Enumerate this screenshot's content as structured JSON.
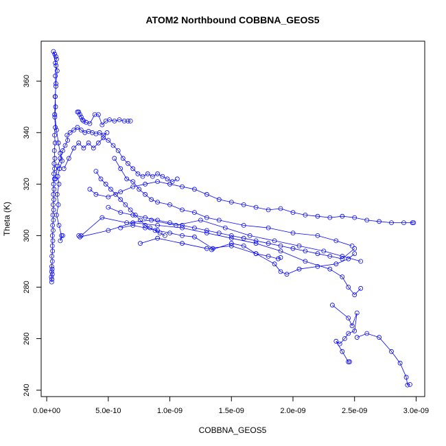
{
  "chart_data": {
    "type": "scatter",
    "title": "ATOM2 Northbound COBBNA_GEOS5",
    "xlabel": "COBBNA_GEOS5",
    "ylabel": "Theta (K)",
    "xlim": [
      -4.5e-11,
      3.07e-09
    ],
    "ylim": [
      237.5,
      375.5
    ],
    "x_ticks": [
      0,
      5e-10,
      1e-09,
      1.5e-09,
      2e-09,
      2.5e-09,
      3e-09
    ],
    "x_tick_labels": [
      "0.0e+00",
      "5.0e-10",
      "1.0e-09",
      "1.5e-09",
      "2.0e-09",
      "2.5e-09",
      "3.0e-09"
    ],
    "y_ticks": [
      240,
      260,
      280,
      300,
      320,
      340,
      360
    ],
    "y_tick_labels": [
      "240",
      "260",
      "280",
      "300",
      "320",
      "340",
      "360"
    ],
    "grid": false,
    "marker": "open-circle",
    "connected": true,
    "color": "#0000ff",
    "series": [
      {
        "points": [
          [
            4e-11,
            282
          ],
          [
            4.2e-11,
            283
          ],
          [
            3.8e-11,
            284
          ],
          [
            4.5e-11,
            285
          ],
          [
            4e-11,
            286
          ],
          [
            4.4e-11,
            287
          ],
          [
            4.1e-11,
            288
          ],
          [
            4.6e-11,
            290
          ],
          [
            4.2e-11,
            292
          ],
          [
            4.8e-11,
            294
          ],
          [
            4.5e-11,
            296
          ],
          [
            5e-11,
            298
          ],
          [
            4.6e-11,
            300
          ],
          [
            5.2e-11,
            302
          ],
          [
            4.8e-11,
            304
          ],
          [
            5.4e-11,
            306
          ],
          [
            5e-11,
            308
          ],
          [
            5.6e-11,
            310
          ],
          [
            5.2e-11,
            312
          ],
          [
            5.8e-11,
            314
          ],
          [
            5.4e-11,
            316
          ],
          [
            6e-11,
            318
          ],
          [
            5.6e-11,
            320
          ],
          [
            6.2e-11,
            322
          ],
          [
            5.8e-11,
            324
          ],
          [
            6.4e-11,
            326
          ],
          [
            6e-11,
            328
          ],
          [
            6.6e-11,
            330
          ],
          [
            6.2e-11,
            333
          ],
          [
            6.8e-11,
            336
          ],
          [
            6.4e-11,
            339
          ],
          [
            7e-11,
            342
          ],
          [
            6.6e-11,
            346
          ],
          [
            7.2e-11,
            350
          ],
          [
            6.8e-11,
            354
          ],
          [
            7.4e-11,
            358
          ],
          [
            7e-11,
            362
          ],
          [
            7.6e-11,
            366
          ],
          [
            5.5e-11,
            371.5
          ],
          [
            6.5e-11,
            370.5
          ],
          [
            7.5e-11,
            369.5
          ],
          [
            8e-11,
            368.5
          ],
          [
            7e-11,
            367
          ],
          [
            8.5e-11,
            364
          ],
          [
            7.5e-11,
            359
          ],
          [
            7e-11,
            354
          ],
          [
            6.5e-11,
            347
          ]
        ]
      },
      {
        "points": [
          [
            6.5e-11,
            347
          ],
          [
            8e-11,
            341
          ],
          [
            9.5e-11,
            336
          ],
          [
            1.1e-10,
            332
          ],
          [
            1.25e-10,
            329
          ],
          [
            1.05e-10,
            326
          ],
          [
            9e-11,
            323
          ],
          [
            1e-10,
            320
          ],
          [
            8.5e-11,
            316
          ],
          [
            9.5e-11,
            312
          ],
          [
            8e-11,
            308
          ],
          [
            1e-10,
            304
          ],
          [
            1.2e-10,
            300
          ],
          [
            1.1e-10,
            298
          ],
          [
            1.3e-10,
            300
          ]
        ]
      },
      {
        "points": [
          [
            7e-11,
            322
          ],
          [
            9e-11,
            327
          ],
          [
            1.1e-10,
            330
          ],
          [
            1.3e-10,
            333
          ],
          [
            1.5e-10,
            335
          ],
          [
            1.7e-10,
            337
          ],
          [
            1.65e-10,
            339
          ],
          [
            1.9e-10,
            340
          ],
          [
            2.2e-10,
            341
          ],
          [
            2.5e-10,
            342
          ],
          [
            2.8e-10,
            341
          ],
          [
            3.1e-10,
            340
          ],
          [
            3.4e-10,
            340.5
          ],
          [
            3.7e-10,
            340
          ],
          [
            4e-10,
            339.5
          ],
          [
            4.3e-10,
            340
          ],
          [
            4.6e-10,
            339
          ],
          [
            4.9e-10,
            340
          ]
        ]
      },
      {
        "points": [
          [
            2.5e-10,
            348
          ],
          [
            2.6e-10,
            348
          ],
          [
            2.7e-10,
            347
          ],
          [
            2.8e-10,
            346
          ],
          [
            2.9e-10,
            345
          ],
          [
            3e-10,
            344.5
          ],
          [
            3.2e-10,
            344
          ],
          [
            3.5e-10,
            343.5
          ],
          [
            3.9e-10,
            347
          ],
          [
            4.2e-10,
            347
          ],
          [
            4.5e-10,
            343
          ],
          [
            4.8e-10,
            344.5
          ],
          [
            5.1e-10,
            345
          ],
          [
            5.5e-10,
            344.5
          ],
          [
            5.9e-10,
            345
          ],
          [
            6.3e-10,
            344.5
          ],
          [
            6.6e-10,
            344.5
          ],
          [
            6.8e-10,
            344.5
          ]
        ]
      },
      {
        "points": [
          [
            1.4e-10,
            326
          ],
          [
            1.8e-10,
            330
          ],
          [
            2.2e-10,
            334
          ],
          [
            2.6e-10,
            336
          ],
          [
            3e-10,
            334
          ],
          [
            3.4e-10,
            336
          ],
          [
            3.8e-10,
            334
          ],
          [
            4.2e-10,
            336
          ],
          [
            4.6e-10,
            338
          ],
          [
            5e-10,
            337
          ],
          [
            5.4e-10,
            335
          ],
          [
            5.8e-10,
            333
          ],
          [
            6.2e-10,
            330
          ],
          [
            6.6e-10,
            328
          ],
          [
            7e-10,
            326
          ],
          [
            7.4e-10,
            324
          ],
          [
            7.8e-10,
            323
          ],
          [
            8.2e-10,
            324
          ],
          [
            8.6e-10,
            323
          ],
          [
            9e-10,
            324
          ],
          [
            9.4e-10,
            323
          ],
          [
            9.8e-10,
            322
          ],
          [
            1.02e-09,
            321
          ],
          [
            1.06e-09,
            322
          ]
        ]
      },
      {
        "points": [
          [
            4e-10,
            325
          ],
          [
            4.4e-10,
            322
          ],
          [
            4.8e-10,
            320
          ],
          [
            5.2e-10,
            318
          ],
          [
            5.6e-10,
            316
          ],
          [
            6e-10,
            314
          ],
          [
            6.4e-10,
            312
          ],
          [
            6.8e-10,
            310
          ],
          [
            7.2e-10,
            308
          ],
          [
            7.6e-10,
            306
          ],
          [
            8e-10,
            304
          ],
          [
            8.4e-10,
            303
          ],
          [
            8.8e-10,
            302
          ],
          [
            9.2e-10,
            301
          ],
          [
            9.6e-10,
            300
          ]
        ]
      },
      {
        "points": [
          [
            3.5e-10,
            318
          ],
          [
            4e-10,
            316
          ],
          [
            5e-10,
            315
          ],
          [
            6e-10,
            317
          ],
          [
            7e-10,
            319
          ],
          [
            8e-10,
            320
          ],
          [
            9e-10,
            321
          ],
          [
            1e-09,
            320
          ],
          [
            1.1e-09,
            319
          ],
          [
            1.2e-09,
            318
          ],
          [
            1.3e-09,
            316
          ],
          [
            1.4e-09,
            314
          ],
          [
            1.5e-09,
            313
          ],
          [
            1.6e-09,
            312
          ],
          [
            1.7e-09,
            311
          ],
          [
            1.8e-09,
            310
          ],
          [
            1.9e-09,
            310.5
          ],
          [
            2e-09,
            309
          ],
          [
            2.1e-09,
            308
          ],
          [
            2.2e-09,
            307.5
          ],
          [
            2.3e-09,
            307
          ],
          [
            2.4e-09,
            307.5
          ],
          [
            2.5e-09,
            307
          ],
          [
            2.6e-09,
            306
          ],
          [
            2.7e-09,
            305.5
          ],
          [
            2.8e-09,
            305
          ],
          [
            2.9e-09,
            305
          ],
          [
            2.98e-09,
            305
          ],
          [
            2.97e-09,
            305
          ]
        ]
      },
      {
        "points": [
          [
            5e-10,
            311
          ],
          [
            6e-10,
            309
          ],
          [
            7e-10,
            308
          ],
          [
            8e-10,
            307
          ],
          [
            9e-10,
            306
          ],
          [
            1e-09,
            305
          ],
          [
            1.1e-09,
            304
          ],
          [
            1.2e-09,
            303
          ],
          [
            1.3e-09,
            302
          ],
          [
            1.4e-09,
            301
          ],
          [
            1.5e-09,
            300
          ],
          [
            1.6e-09,
            299
          ],
          [
            1.7e-09,
            298
          ],
          [
            1.8e-09,
            297
          ],
          [
            1.9e-09,
            296
          ],
          [
            2e-09,
            295
          ],
          [
            2.1e-09,
            294
          ],
          [
            2.2e-09,
            293
          ],
          [
            2.3e-09,
            292
          ],
          [
            2.4e-09,
            291
          ],
          [
            2.5e-09,
            295
          ]
        ]
      },
      {
        "points": [
          [
            6e-10,
            303
          ],
          [
            7e-10,
            304
          ],
          [
            8e-10,
            303
          ],
          [
            9e-10,
            302
          ],
          [
            1e-09,
            301
          ],
          [
            1.1e-09,
            300
          ],
          [
            1.2e-09,
            299.5
          ],
          [
            1.35e-09,
            295
          ],
          [
            1.34e-09,
            294.5
          ],
          [
            1.5e-09,
            297
          ],
          [
            1.6e-09,
            296
          ],
          [
            1.7e-09,
            293
          ],
          [
            1.8e-09,
            292
          ],
          [
            1.88e-09,
            291
          ],
          [
            1.9e-09,
            291.5
          ]
        ]
      },
      {
        "points": [
          [
            2.6e-10,
            300
          ],
          [
            2.7e-10,
            299.5
          ],
          [
            5e-10,
            302
          ],
          [
            7e-10,
            305
          ],
          [
            9e-10,
            304
          ],
          [
            1.1e-09,
            303
          ],
          [
            1.3e-09,
            301
          ],
          [
            1.5e-09,
            299
          ],
          [
            1.7e-09,
            297
          ],
          [
            1.9e-09,
            294
          ],
          [
            2.1e-09,
            290
          ],
          [
            2.3e-09,
            287
          ],
          [
            2.4e-09,
            284
          ],
          [
            2.45e-09,
            280
          ],
          [
            2.5e-09,
            277
          ],
          [
            2.55e-09,
            279.5
          ]
        ]
      },
      {
        "points": [
          [
            7.6e-10,
            297
          ],
          [
            9e-10,
            299
          ],
          [
            1.1e-09,
            297
          ],
          [
            1.3e-09,
            295
          ],
          [
            1.5e-09,
            296
          ],
          [
            1.7e-09,
            293
          ],
          [
            1.85e-09,
            289
          ],
          [
            1.9e-09,
            286
          ],
          [
            1.95e-09,
            285
          ],
          [
            2.05e-09,
            287
          ],
          [
            2.2e-09,
            288
          ],
          [
            2.35e-09,
            289
          ],
          [
            2.45e-09,
            291
          ],
          [
            2.5e-09,
            293
          ]
        ]
      },
      {
        "points": [
          [
            2.32e-09,
            273
          ],
          [
            2.45e-09,
            268
          ],
          [
            2.48e-09,
            265
          ],
          [
            2.52e-09,
            270
          ],
          [
            2.5e-09,
            263
          ],
          [
            2.45e-09,
            262
          ],
          [
            2.42e-09,
            260
          ],
          [
            2.38e-09,
            258
          ],
          [
            2.35e-09,
            259
          ],
          [
            2.4e-09,
            255
          ],
          [
            2.45e-09,
            251
          ],
          [
            2.46e-09,
            251
          ]
        ]
      },
      {
        "points": [
          [
            2.52e-09,
            260.5
          ],
          [
            2.6e-09,
            262
          ],
          [
            2.7e-09,
            260.5
          ],
          [
            2.8e-09,
            255
          ],
          [
            2.87e-09,
            250.5
          ],
          [
            2.92e-09,
            245
          ],
          [
            2.93e-09,
            242
          ],
          [
            2.95e-09,
            242.2
          ]
        ]
      },
      {
        "points": [
          [
            2.8e-10,
            300
          ],
          [
            4.5e-10,
            307
          ],
          [
            6.5e-10,
            305
          ],
          [
            8.5e-10,
            306
          ],
          [
            1.05e-09,
            304
          ],
          [
            1.25e-09,
            306
          ],
          [
            1.45e-09,
            303
          ],
          [
            1.65e-09,
            300
          ],
          [
            1.85e-09,
            298
          ],
          [
            2.05e-09,
            296
          ],
          [
            2.25e-09,
            294
          ],
          [
            2.4e-09,
            292
          ],
          [
            2.55e-09,
            290
          ]
        ]
      },
      {
        "points": [
          [
            5.5e-10,
            330
          ],
          [
            6e-10,
            326
          ],
          [
            6.5e-10,
            322
          ],
          [
            7e-10,
            321
          ],
          [
            7.5e-10,
            318
          ],
          [
            8e-10,
            316
          ],
          [
            8.5e-10,
            314
          ],
          [
            9e-10,
            313
          ],
          [
            1e-09,
            312
          ],
          [
            1.1e-09,
            310
          ],
          [
            1.2e-09,
            309
          ],
          [
            1.3e-09,
            307
          ],
          [
            1.4e-09,
            306
          ],
          [
            1.6e-09,
            304
          ],
          [
            1.8e-09,
            303
          ],
          [
            2e-09,
            301
          ],
          [
            2.2e-09,
            300
          ],
          [
            2.35e-09,
            298
          ],
          [
            2.48e-09,
            296
          ]
        ]
      }
    ]
  }
}
